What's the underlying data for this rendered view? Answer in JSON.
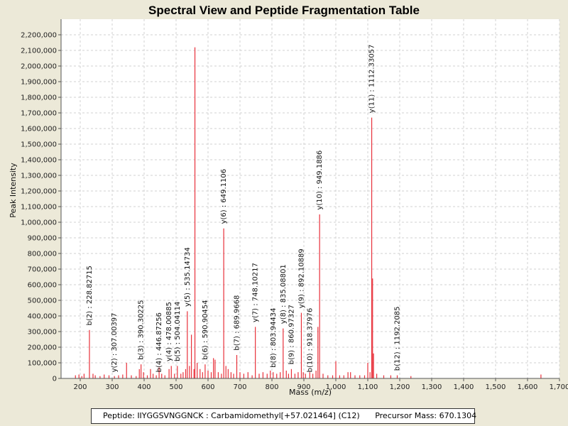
{
  "chart_data": {
    "type": "bar",
    "title": "Spectral View and Peptide Fragmentation Table",
    "xlabel": "Mass (m/z)",
    "ylabel": "Peak Intensity",
    "xlim": [
      140,
      1700
    ],
    "ylim": [
      0,
      2300000
    ],
    "x_ticks": [
      200,
      300,
      400,
      500,
      600,
      700,
      800,
      900,
      1000,
      1100,
      1200,
      1300,
      1400,
      1500,
      1600,
      1700
    ],
    "x_tick_labels": [
      "200",
      "300",
      "400",
      "500",
      "600",
      "700",
      "800",
      "900",
      "1,000",
      "1,100",
      "1,200",
      "1,300",
      "1,400",
      "1,500",
      "1,600",
      "1,700"
    ],
    "y_ticks": [
      0,
      100000,
      200000,
      300000,
      400000,
      500000,
      600000,
      700000,
      800000,
      900000,
      1000000,
      1100000,
      1200000,
      1300000,
      1400000,
      1500000,
      1600000,
      1700000,
      1800000,
      1900000,
      2000000,
      2100000,
      2200000
    ],
    "y_tick_labels": [
      "0",
      "100,000",
      "200,000",
      "300,000",
      "400,000",
      "500,000",
      "600,000",
      "700,000",
      "800,000",
      "900,000",
      "1,000,000",
      "1,100,000",
      "1,200,000",
      "1,300,000",
      "1,400,000",
      "1,500,000",
      "1,600,000",
      "1,700,000",
      "1,800,000",
      "1,900,000",
      "2,000,000",
      "2,100,000",
      "2,200,000"
    ],
    "grid": true,
    "peak_color": "#E8303A",
    "peaks": [
      {
        "mz": 185,
        "intensity": 20000
      },
      {
        "mz": 196,
        "intensity": 25000
      },
      {
        "mz": 205,
        "intensity": 15000
      },
      {
        "mz": 212,
        "intensity": 30000
      },
      {
        "mz": 228.82715,
        "intensity": 310000
      },
      {
        "mz": 240,
        "intensity": 30000
      },
      {
        "mz": 247,
        "intensity": 20000
      },
      {
        "mz": 262,
        "intensity": 15000
      },
      {
        "mz": 275,
        "intensity": 25000
      },
      {
        "mz": 290,
        "intensity": 20000
      },
      {
        "mz": 307.00397,
        "intensity": 15000
      },
      {
        "mz": 320,
        "intensity": 20000
      },
      {
        "mz": 333,
        "intensity": 25000
      },
      {
        "mz": 345,
        "intensity": 100000
      },
      {
        "mz": 360,
        "intensity": 20000
      },
      {
        "mz": 375,
        "intensity": 15000
      },
      {
        "mz": 385,
        "intensity": 60000
      },
      {
        "mz": 390.30225,
        "intensity": 90000
      },
      {
        "mz": 398,
        "intensity": 40000
      },
      {
        "mz": 410,
        "intensity": 20000
      },
      {
        "mz": 420,
        "intensity": 60000
      },
      {
        "mz": 428,
        "intensity": 30000
      },
      {
        "mz": 438,
        "intensity": 20000
      },
      {
        "mz": 446.87256,
        "intensity": 70000
      },
      {
        "mz": 455,
        "intensity": 30000
      },
      {
        "mz": 465,
        "intensity": 20000
      },
      {
        "mz": 478.00885,
        "intensity": 60000
      },
      {
        "mz": 485,
        "intensity": 80000
      },
      {
        "mz": 495,
        "intensity": 30000
      },
      {
        "mz": 504.04114,
        "intensity": 80000
      },
      {
        "mz": 515,
        "intensity": 30000
      },
      {
        "mz": 522,
        "intensity": 40000
      },
      {
        "mz": 530,
        "intensity": 60000
      },
      {
        "mz": 535.14734,
        "intensity": 430000
      },
      {
        "mz": 542,
        "intensity": 80000
      },
      {
        "mz": 548,
        "intensity": 280000
      },
      {
        "mz": 556,
        "intensity": 60000
      },
      {
        "mz": 559,
        "intensity": 2120000
      },
      {
        "mz": 566,
        "intensity": 100000
      },
      {
        "mz": 575,
        "intensity": 60000
      },
      {
        "mz": 583,
        "intensity": 40000
      },
      {
        "mz": 590.90454,
        "intensity": 90000
      },
      {
        "mz": 600,
        "intensity": 50000
      },
      {
        "mz": 610,
        "intensity": 40000
      },
      {
        "mz": 617,
        "intensity": 130000
      },
      {
        "mz": 622,
        "intensity": 120000
      },
      {
        "mz": 632,
        "intensity": 40000
      },
      {
        "mz": 642,
        "intensity": 30000
      },
      {
        "mz": 649.1106,
        "intensity": 960000
      },
      {
        "mz": 656,
        "intensity": 80000
      },
      {
        "mz": 663,
        "intensity": 60000
      },
      {
        "mz": 672,
        "intensity": 40000
      },
      {
        "mz": 680,
        "intensity": 30000
      },
      {
        "mz": 689.9668,
        "intensity": 150000
      },
      {
        "mz": 700,
        "intensity": 40000
      },
      {
        "mz": 712,
        "intensity": 30000
      },
      {
        "mz": 725,
        "intensity": 40000
      },
      {
        "mz": 738,
        "intensity": 20000
      },
      {
        "mz": 748.10217,
        "intensity": 330000
      },
      {
        "mz": 760,
        "intensity": 30000
      },
      {
        "mz": 772,
        "intensity": 40000
      },
      {
        "mz": 785,
        "intensity": 30000
      },
      {
        "mz": 795,
        "intensity": 50000
      },
      {
        "mz": 803.94434,
        "intensity": 40000
      },
      {
        "mz": 815,
        "intensity": 30000
      },
      {
        "mz": 826,
        "intensity": 40000
      },
      {
        "mz": 835.08801,
        "intensity": 320000
      },
      {
        "mz": 845,
        "intensity": 50000
      },
      {
        "mz": 852,
        "intensity": 30000
      },
      {
        "mz": 860.97327,
        "intensity": 60000
      },
      {
        "mz": 872,
        "intensity": 30000
      },
      {
        "mz": 882,
        "intensity": 40000
      },
      {
        "mz": 892.10889,
        "intensity": 420000
      },
      {
        "mz": 898,
        "intensity": 40000
      },
      {
        "mz": 905,
        "intensity": 30000
      },
      {
        "mz": 918.37976,
        "intensity": 40000
      },
      {
        "mz": 928,
        "intensity": 30000
      },
      {
        "mz": 938,
        "intensity": 50000
      },
      {
        "mz": 944,
        "intensity": 330000
      },
      {
        "mz": 949.1886,
        "intensity": 1050000
      },
      {
        "mz": 960,
        "intensity": 30000
      },
      {
        "mz": 975,
        "intensity": 20000
      },
      {
        "mz": 990,
        "intensity": 20000
      },
      {
        "mz": 1000,
        "intensity": 110000
      },
      {
        "mz": 1012,
        "intensity": 20000
      },
      {
        "mz": 1025,
        "intensity": 20000
      },
      {
        "mz": 1038,
        "intensity": 40000
      },
      {
        "mz": 1046,
        "intensity": 40000
      },
      {
        "mz": 1060,
        "intensity": 20000
      },
      {
        "mz": 1075,
        "intensity": 20000
      },
      {
        "mz": 1090,
        "intensity": 20000
      },
      {
        "mz": 1100,
        "intensity": 100000
      },
      {
        "mz": 1107,
        "intensity": 40000
      },
      {
        "mz": 1112.33057,
        "intensity": 1670000
      },
      {
        "mz": 1115,
        "intensity": 640000
      },
      {
        "mz": 1118,
        "intensity": 160000
      },
      {
        "mz": 1128,
        "intensity": 30000
      },
      {
        "mz": 1150,
        "intensity": 20000
      },
      {
        "mz": 1172,
        "intensity": 20000
      },
      {
        "mz": 1192.2085,
        "intensity": 20000
      },
      {
        "mz": 1235,
        "intensity": 15000
      },
      {
        "mz": 1642,
        "intensity": 25000
      }
    ],
    "annotations": [
      {
        "label": "b(2) : 228.82715",
        "mz": 228.82715,
        "y": 330000
      },
      {
        "label": "y(2) : 307.00397",
        "mz": 307.00397,
        "y": 30000
      },
      {
        "label": "b(3) : 390.30225",
        "mz": 390.30225,
        "y": 110000
      },
      {
        "label": "b(4) : 446.87256",
        "mz": 446.87256,
        "y": 30000
      },
      {
        "label": "y(4) : 478.00885",
        "mz": 478.00885,
        "y": 100000
      },
      {
        "label": "b(5) : 504.04114",
        "mz": 504.04114,
        "y": 100000
      },
      {
        "label": "y(5) : 535.14734",
        "mz": 535.14734,
        "y": 450000
      },
      {
        "label": "b(6) : 590.90454",
        "mz": 590.90454,
        "y": 110000
      },
      {
        "label": "y(6) : 649.1106",
        "mz": 649.1106,
        "y": 980000
      },
      {
        "label": "b(7) : 689.9668",
        "mz": 689.9668,
        "y": 170000
      },
      {
        "label": "y(7) : 748.10217",
        "mz": 748.10217,
        "y": 350000
      },
      {
        "label": "b(8) : 803.94434",
        "mz": 803.94434,
        "y": 60000
      },
      {
        "label": "y(8) : 835.08801",
        "mz": 835.08801,
        "y": 340000
      },
      {
        "label": "b(9) : 860.97327",
        "mz": 860.97327,
        "y": 80000
      },
      {
        "label": "y(9) : 892.10889",
        "mz": 892.10889,
        "y": 440000
      },
      {
        "label": "b(10) : 918.37976",
        "mz": 918.37976,
        "y": 30000
      },
      {
        "label": "y(10) : 949.1886",
        "mz": 949.1886,
        "y": 1070000
      },
      {
        "label": "y(11) : 1112.33057",
        "mz": 1112.33057,
        "y": 1690000
      },
      {
        "label": "b(12) : 1192.2085",
        "mz": 1192.2085,
        "y": 40000
      }
    ]
  },
  "legend": {
    "peptide": "Peptide: IIYGGSVNGGNCK : Carbamidomethyl[+57.021464] (C12)",
    "precursor": "Precursor Mass: 670.1304"
  }
}
